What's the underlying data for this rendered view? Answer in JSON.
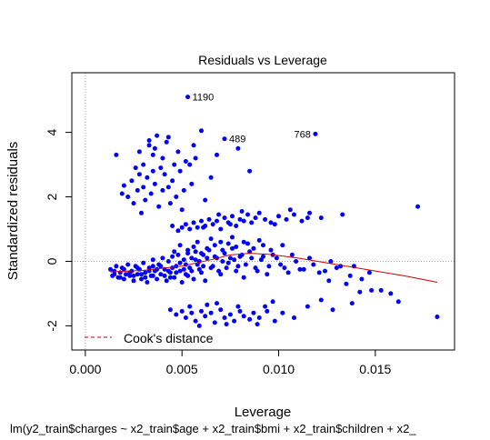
{
  "chart_data": {
    "type": "scatter",
    "title": "Residuals vs Leverage",
    "xlabel": "Leverage",
    "ylabel": "Standardized residuals",
    "subtitle": "lm(y2_train$charges ~ x2_train$age + x2_train$bmi + x2_train$children + x2_",
    "xlim": [
      -0.0007,
      0.0191
    ],
    "ylim": [
      -2.75,
      5.85
    ],
    "x_ticks": [
      0.0,
      0.005,
      0.01,
      0.015
    ],
    "x_tick_labels": [
      "0.000",
      "0.005",
      "0.010",
      "0.015"
    ],
    "y_ticks": [
      -2,
      0,
      2,
      4
    ],
    "y_tick_labels": [
      "-2",
      "0",
      "2",
      "4"
    ],
    "grid": false,
    "point_color": "#0000ff",
    "reference_lines": [
      {
        "axis": "x",
        "value": 0,
        "style": "dotted",
        "color": "#a0a0a0"
      },
      {
        "axis": "y",
        "value": 0,
        "style": "dotted",
        "color": "#a0a0a0"
      }
    ],
    "labeled_points": [
      {
        "label": "1190",
        "x": 0.0053,
        "y": 5.1
      },
      {
        "label": "489",
        "x": 0.0072,
        "y": 3.8
      },
      {
        "label": "768",
        "x": 0.0119,
        "y": 3.95
      }
    ],
    "points": [
      [
        0.0016,
        3.3
      ],
      [
        0.0019,
        2.1
      ],
      [
        0.002,
        2.35
      ],
      [
        0.0022,
        2.0
      ],
      [
        0.0024,
        2.5
      ],
      [
        0.0025,
        1.8
      ],
      [
        0.0026,
        2.9
      ],
      [
        0.0027,
        2.2
      ],
      [
        0.0028,
        2.7
      ],
      [
        0.0028,
        3.4
      ],
      [
        0.0029,
        1.5
      ],
      [
        0.003,
        2.3
      ],
      [
        0.003,
        3.0
      ],
      [
        0.0031,
        1.9
      ],
      [
        0.0032,
        2.6
      ],
      [
        0.0033,
        3.6
      ],
      [
        0.0034,
        2.1
      ],
      [
        0.0035,
        2.8
      ],
      [
        0.0035,
        3.3
      ],
      [
        0.0036,
        2.4
      ],
      [
        0.0037,
        3.9
      ],
      [
        0.0038,
        1.7
      ],
      [
        0.0039,
        2.9
      ],
      [
        0.004,
        2.2
      ],
      [
        0.004,
        3.2
      ],
      [
        0.0041,
        2.7
      ],
      [
        0.0042,
        3.7
      ],
      [
        0.0043,
        2.3
      ],
      [
        0.0044,
        1.8
      ],
      [
        0.0045,
        2.5
      ],
      [
        0.0046,
        3.0
      ],
      [
        0.0047,
        2.0
      ],
      [
        0.0048,
        3.4
      ],
      [
        0.0049,
        2.8
      ],
      [
        0.005,
        1.6
      ],
      [
        0.0051,
        2.2
      ],
      [
        0.0052,
        3.1
      ],
      [
        0.0055,
        2.4
      ],
      [
        0.0056,
        3.6
      ],
      [
        0.0057,
        3.2
      ],
      [
        0.006,
        4.05
      ],
      [
        0.0062,
        1.9
      ],
      [
        0.0065,
        2.6
      ],
      [
        0.0068,
        3.3
      ],
      [
        0.0079,
        3.5
      ],
      [
        0.0085,
        2.8
      ],
      [
        0.0033,
        3.75
      ],
      [
        0.0036,
        3.5
      ],
      [
        0.0043,
        3.85
      ],
      [
        0.0054,
        3.0
      ],
      [
        0.0045,
        1.1
      ],
      [
        0.0048,
        0.95
      ],
      [
        0.005,
        1.05
      ],
      [
        0.0052,
        1.15
      ],
      [
        0.0054,
        1.0
      ],
      [
        0.0056,
        1.2
      ],
      [
        0.0058,
        1.05
      ],
      [
        0.006,
        1.25
      ],
      [
        0.0062,
        1.1
      ],
      [
        0.0064,
        1.3
      ],
      [
        0.0066,
        1.15
      ],
      [
        0.0068,
        1.25
      ],
      [
        0.007,
        1.0
      ],
      [
        0.0072,
        1.35
      ],
      [
        0.0074,
        1.2
      ],
      [
        0.0076,
        1.4
      ],
      [
        0.0078,
        1.1
      ],
      [
        0.008,
        1.3
      ],
      [
        0.0082,
        1.25
      ],
      [
        0.0084,
        1.45
      ],
      [
        0.0086,
        1.2
      ],
      [
        0.0088,
        1.35
      ],
      [
        0.009,
        1.5
      ],
      [
        0.0093,
        1.3
      ],
      [
        0.0096,
        1.2
      ],
      [
        0.01,
        1.4
      ],
      [
        0.0104,
        1.3
      ],
      [
        0.0108,
        1.45
      ],
      [
        0.0112,
        1.25
      ],
      [
        0.0116,
        1.5
      ],
      [
        0.0122,
        1.35
      ],
      [
        0.0133,
        1.45
      ],
      [
        0.0172,
        1.7
      ],
      [
        0.0106,
        1.6
      ],
      [
        0.0115,
        1.35
      ],
      [
        0.0098,
        1.15
      ],
      [
        0.0081,
        1.55
      ],
      [
        0.0069,
        1.45
      ],
      [
        0.0061,
        1.05
      ],
      [
        0.0075,
        1.15
      ],
      [
        0.0044,
        -1.5
      ],
      [
        0.0047,
        -1.65
      ],
      [
        0.005,
        -1.55
      ],
      [
        0.0052,
        -1.75
      ],
      [
        0.0055,
        -1.6
      ],
      [
        0.0057,
        -1.85
      ],
      [
        0.006,
        -1.55
      ],
      [
        0.0062,
        -1.7
      ],
      [
        0.0065,
        -1.6
      ],
      [
        0.0067,
        -1.9
      ],
      [
        0.007,
        -1.5
      ],
      [
        0.0072,
        -1.75
      ],
      [
        0.0075,
        -1.65
      ],
      [
        0.0077,
        -1.85
      ],
      [
        0.008,
        -1.55
      ],
      [
        0.0082,
        -1.7
      ],
      [
        0.0085,
        -1.8
      ],
      [
        0.0087,
        -1.6
      ],
      [
        0.009,
        -1.75
      ],
      [
        0.0094,
        -1.55
      ],
      [
        0.0098,
        -1.85
      ],
      [
        0.0102,
        -1.6
      ],
      [
        0.0108,
        -1.75
      ],
      [
        0.0115,
        -1.4
      ],
      [
        0.0122,
        -1.2
      ],
      [
        0.0128,
        -1.5
      ],
      [
        0.0138,
        -1.3
      ],
      [
        0.0142,
        -0.95
      ],
      [
        0.0153,
        -0.9
      ],
      [
        0.0162,
        -1.25
      ],
      [
        0.0182,
        -1.72
      ],
      [
        0.0097,
        -1.25
      ],
      [
        0.0093,
        -1.4
      ],
      [
        0.0063,
        -1.35
      ],
      [
        0.0054,
        -1.4
      ],
      [
        0.0079,
        -1.4
      ],
      [
        0.0089,
        -1.95
      ],
      [
        0.0073,
        -1.95
      ],
      [
        0.0059,
        -2.0
      ],
      [
        0.0068,
        -1.3
      ],
      [
        0.0013,
        -0.25
      ],
      [
        0.0014,
        -0.45
      ],
      [
        0.0015,
        -0.3
      ],
      [
        0.0016,
        -0.15
      ],
      [
        0.0017,
        -0.5
      ],
      [
        0.0018,
        -0.35
      ],
      [
        0.0019,
        -0.2
      ],
      [
        0.002,
        -0.55
      ],
      [
        0.0021,
        -0.4
      ],
      [
        0.0022,
        -0.1
      ],
      [
        0.0023,
        -0.45
      ],
      [
        0.0024,
        -0.3
      ],
      [
        0.0025,
        -0.6
      ],
      [
        0.0026,
        -0.15
      ],
      [
        0.0027,
        -0.4
      ],
      [
        0.0028,
        -0.25
      ],
      [
        0.0029,
        -0.55
      ],
      [
        0.003,
        -0.05
      ],
      [
        0.0031,
        -0.35
      ],
      [
        0.0032,
        -0.65
      ],
      [
        0.0033,
        -0.2
      ],
      [
        0.0034,
        -0.45
      ],
      [
        0.0035,
        0.05
      ],
      [
        0.0036,
        -0.3
      ],
      [
        0.0037,
        -0.55
      ],
      [
        0.0038,
        -0.1
      ],
      [
        0.0039,
        -0.4
      ],
      [
        0.004,
        0.1
      ],
      [
        0.0041,
        -0.25
      ],
      [
        0.0042,
        -0.6
      ],
      [
        0.0043,
        0.0
      ],
      [
        0.0044,
        -0.35
      ],
      [
        0.0045,
        0.15
      ],
      [
        0.0046,
        -0.5
      ],
      [
        0.0047,
        -0.15
      ],
      [
        0.0048,
        0.2
      ],
      [
        0.0049,
        -0.3
      ],
      [
        0.005,
        -0.65
      ],
      [
        0.0051,
        0.05
      ],
      [
        0.0052,
        -0.4
      ],
      [
        0.0053,
        0.25
      ],
      [
        0.0054,
        -0.2
      ],
      [
        0.0055,
        0.1
      ],
      [
        0.0056,
        -0.55
      ],
      [
        0.0057,
        0.3
      ],
      [
        0.0058,
        -0.1
      ],
      [
        0.0059,
        0.0
      ],
      [
        0.006,
        -0.35
      ],
      [
        0.0061,
        0.2
      ],
      [
        0.0062,
        -0.6
      ],
      [
        0.0064,
        0.35
      ],
      [
        0.0066,
        -0.15
      ],
      [
        0.0068,
        0.1
      ],
      [
        0.007,
        -0.4
      ],
      [
        0.0072,
        0.25
      ],
      [
        0.0074,
        -0.05
      ],
      [
        0.0076,
        0.4
      ],
      [
        0.0078,
        -0.3
      ],
      [
        0.008,
        0.15
      ],
      [
        0.0082,
        -0.5
      ],
      [
        0.0085,
        0.3
      ],
      [
        0.0088,
        -0.2
      ],
      [
        0.0091,
        0.05
      ],
      [
        0.0094,
        -0.4
      ],
      [
        0.0097,
        0.2
      ],
      [
        0.0101,
        -0.1
      ],
      [
        0.0105,
        -0.35
      ],
      [
        0.0109,
        0.0
      ],
      [
        0.0113,
        -0.25
      ],
      [
        0.0118,
        -0.1
      ],
      [
        0.0124,
        -0.3
      ],
      [
        0.013,
        -0.2
      ],
      [
        0.0137,
        -0.45
      ],
      [
        0.0143,
        -0.55
      ],
      [
        0.0135,
        -0.7
      ],
      [
        0.0148,
        -0.9
      ],
      [
        0.0158,
        -1.0
      ],
      [
        0.0147,
        -0.35
      ],
      [
        0.0139,
        -0.15
      ],
      [
        0.0126,
        -0.6
      ],
      [
        0.0015,
        -0.4
      ],
      [
        0.0018,
        -0.5
      ],
      [
        0.002,
        -0.25
      ],
      [
        0.0023,
        -0.35
      ],
      [
        0.0025,
        -0.45
      ],
      [
        0.0027,
        -0.2
      ],
      [
        0.0029,
        -0.4
      ],
      [
        0.0031,
        -0.5
      ],
      [
        0.0033,
        -0.3
      ],
      [
        0.0035,
        -0.45
      ],
      [
        0.0037,
        -0.25
      ],
      [
        0.0039,
        -0.15
      ],
      [
        0.0041,
        -0.45
      ],
      [
        0.0043,
        -0.3
      ],
      [
        0.0045,
        -0.2
      ],
      [
        0.0047,
        -0.35
      ],
      [
        0.0049,
        -0.05
      ],
      [
        0.0051,
        -0.25
      ],
      [
        0.0053,
        -0.45
      ],
      [
        0.0055,
        -0.3
      ],
      [
        0.0057,
        0.05
      ],
      [
        0.0059,
        -0.25
      ],
      [
        0.0061,
        -0.15
      ],
      [
        0.0063,
        0.1
      ],
      [
        0.0065,
        -0.2
      ],
      [
        0.0067,
        0.15
      ],
      [
        0.0069,
        -0.3
      ],
      [
        0.0071,
        0.0
      ],
      [
        0.0073,
        -0.2
      ],
      [
        0.0075,
        0.1
      ],
      [
        0.0077,
        0.05
      ],
      [
        0.0079,
        -0.15
      ],
      [
        0.0081,
        0.2
      ],
      [
        0.0083,
        -0.1
      ],
      [
        0.0086,
        0.1
      ],
      [
        0.0089,
        -0.3
      ],
      [
        0.0092,
        0.15
      ],
      [
        0.0095,
        -0.15
      ],
      [
        0.0099,
        0.1
      ],
      [
        0.0103,
        -0.2
      ],
      [
        0.0107,
        0.2
      ],
      [
        0.0111,
        -0.25
      ],
      [
        0.0116,
        0.1
      ],
      [
        0.0121,
        -0.35
      ],
      [
        0.0127,
        0.0
      ],
      [
        0.0132,
        -0.15
      ],
      [
        0.0035,
        -0.15
      ],
      [
        0.0044,
        -0.5
      ],
      [
        0.0052,
        -0.1
      ],
      [
        0.006,
        0.25
      ],
      [
        0.0063,
        0.4
      ],
      [
        0.0067,
        0.5
      ],
      [
        0.0071,
        0.35
      ],
      [
        0.0074,
        0.55
      ],
      [
        0.0078,
        0.45
      ],
      [
        0.0082,
        0.6
      ],
      [
        0.0087,
        0.4
      ],
      [
        0.0092,
        0.5
      ],
      [
        0.0096,
        0.35
      ],
      [
        0.0056,
        0.45
      ],
      [
        0.0058,
        0.6
      ],
      [
        0.0053,
        0.35
      ],
      [
        0.0049,
        0.5
      ],
      [
        0.0046,
        0.3
      ],
      [
        0.0065,
        0.7
      ],
      [
        0.007,
        0.6
      ],
      [
        0.0076,
        0.75
      ],
      [
        0.0084,
        0.55
      ],
      [
        0.009,
        0.65
      ],
      [
        0.0102,
        0.5
      ]
    ],
    "smooth_line": {
      "color": "#cc0000",
      "points": [
        [
          0.0013,
          -0.33
        ],
        [
          0.003,
          -0.28
        ],
        [
          0.005,
          -0.15
        ],
        [
          0.0065,
          0.05
        ],
        [
          0.0075,
          0.2
        ],
        [
          0.0085,
          0.25
        ],
        [
          0.0095,
          0.22
        ],
        [
          0.011,
          0.1
        ],
        [
          0.013,
          -0.1
        ],
        [
          0.015,
          -0.3
        ],
        [
          0.0165,
          -0.45
        ],
        [
          0.0182,
          -0.65
        ]
      ]
    },
    "legend": {
      "position": "bottom-left",
      "entries": [
        {
          "label": "Cook's distance",
          "color": "#cc0000",
          "style": "dashed"
        }
      ]
    }
  }
}
